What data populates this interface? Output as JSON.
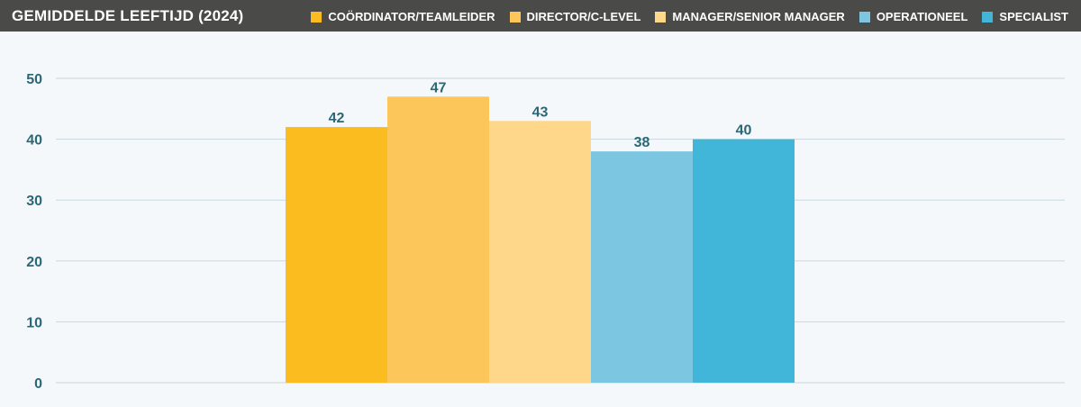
{
  "chart_data": {
    "type": "bar",
    "title": "GEMIDDELDE LEEFTIJD (2024)",
    "series": [
      {
        "name": "COÖRDINATOR/TEAMLEIDER",
        "value": 42,
        "color": "#fbbc1f"
      },
      {
        "name": "DIRECTOR/C-LEVEL",
        "value": 47,
        "color": "#fdc65b"
      },
      {
        "name": "MANAGER/SENIOR MANAGER",
        "value": 43,
        "color": "#fed78a"
      },
      {
        "name": "OPERATIONEEL",
        "value": 38,
        "color": "#7cc6e2"
      },
      {
        "name": "SPECIALIST",
        "value": 40,
        "color": "#42b6d9"
      }
    ],
    "yticks": [
      "0",
      "10",
      "20",
      "30",
      "40",
      "50"
    ],
    "ylim": [
      0,
      50
    ],
    "grid": true,
    "legend_position": "top-right"
  }
}
